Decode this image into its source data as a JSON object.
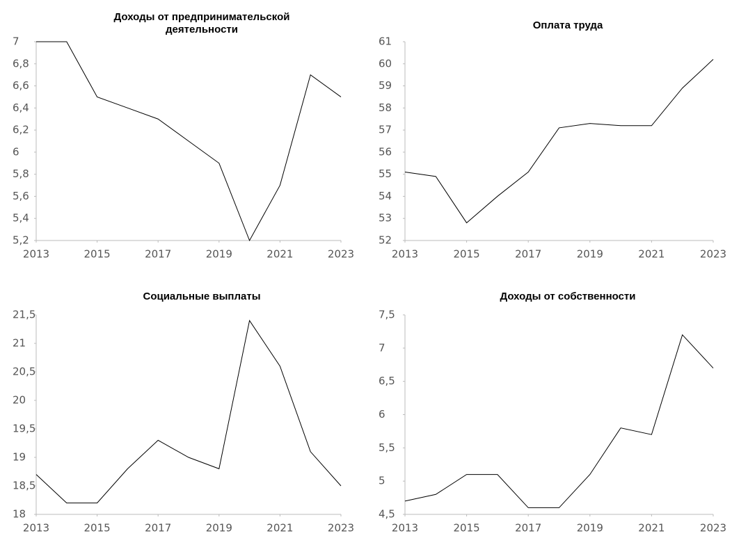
{
  "chart_data": [
    {
      "type": "line",
      "title": "Доходы от предпринимательской деятельности",
      "x": [
        2013,
        2014,
        2015,
        2016,
        2017,
        2018,
        2019,
        2020,
        2021,
        2022,
        2023
      ],
      "values": [
        7,
        7,
        6.5,
        6.4,
        6.3,
        6.1,
        5.9,
        5.2,
        5.7,
        6.7,
        6.5
      ],
      "color": "#000000",
      "xlim": [
        2013,
        2023
      ],
      "xticks": [
        2013,
        2015,
        2017,
        2019,
        2021,
        2023
      ],
      "ylim": [
        5.2,
        7
      ],
      "yticks": [
        {
          "value": 5.2,
          "label": "5,2"
        },
        {
          "value": 5.4,
          "label": "5,4"
        },
        {
          "value": 5.6,
          "label": "5,6"
        },
        {
          "value": 5.8,
          "label": "5,8"
        },
        6,
        {
          "value": 6.2,
          "label": "6,2"
        },
        {
          "value": 6.4,
          "label": "6,4"
        },
        {
          "value": 6.6,
          "label": "6,6"
        },
        {
          "value": 6.8,
          "label": "6,8"
        },
        7
      ]
    },
    {
      "type": "line",
      "title": "Оплата труда",
      "x": [
        2013,
        2014,
        2015,
        2016,
        2017,
        2018,
        2019,
        2020,
        2021,
        2022,
        2023
      ],
      "values": [
        55.1,
        54.9,
        52.8,
        54.0,
        55.1,
        57.1,
        57.3,
        57.2,
        57.2,
        58.9,
        60.2
      ],
      "color": "#000000",
      "xlim": [
        2013,
        2023
      ],
      "xticks": [
        2013,
        2015,
        2017,
        2019,
        2021,
        2023
      ],
      "ylim": [
        52,
        61
      ],
      "yticks": [
        52,
        53,
        54,
        55,
        56,
        57,
        58,
        59,
        60,
        61
      ]
    },
    {
      "type": "line",
      "title": "Социальные выплаты",
      "x": [
        2013,
        2014,
        2015,
        2016,
        2017,
        2018,
        2019,
        2020,
        2021,
        2022,
        2023
      ],
      "values": [
        18.7,
        18.2,
        18.2,
        18.8,
        19.3,
        19.0,
        18.8,
        21.4,
        20.6,
        19.1,
        18.5
      ],
      "color": "#000000",
      "xlim": [
        2013,
        2023
      ],
      "xticks": [
        2013,
        2015,
        2017,
        2019,
        2021,
        2023
      ],
      "ylim": [
        18,
        21.5
      ],
      "yticks": [
        18,
        {
          "value": 18.5,
          "label": "18,5"
        },
        19,
        {
          "value": 19.5,
          "label": "19,5"
        },
        20,
        {
          "value": 20.5,
          "label": "20,5"
        },
        21,
        {
          "value": 21.5,
          "label": "21,5"
        }
      ]
    },
    {
      "type": "line",
      "title": "Доходы от собственности",
      "x": [
        2013,
        2014,
        2015,
        2016,
        2017,
        2018,
        2019,
        2020,
        2021,
        2022,
        2023
      ],
      "values": [
        4.7,
        4.8,
        5.1,
        5.1,
        4.6,
        4.6,
        5.1,
        5.8,
        5.7,
        7.2,
        6.7
      ],
      "color": "#000000",
      "xlim": [
        2013,
        2023
      ],
      "xticks": [
        2013,
        2015,
        2017,
        2019,
        2021,
        2023
      ],
      "ylim": [
        4.5,
        7.5
      ],
      "yticks": [
        {
          "value": 4.5,
          "label": "4,5"
        },
        5,
        {
          "value": 5.5,
          "label": "5,5"
        },
        6,
        {
          "value": 6.5,
          "label": "6,5"
        },
        7,
        {
          "value": 7.5,
          "label": "7,5"
        }
      ]
    }
  ]
}
